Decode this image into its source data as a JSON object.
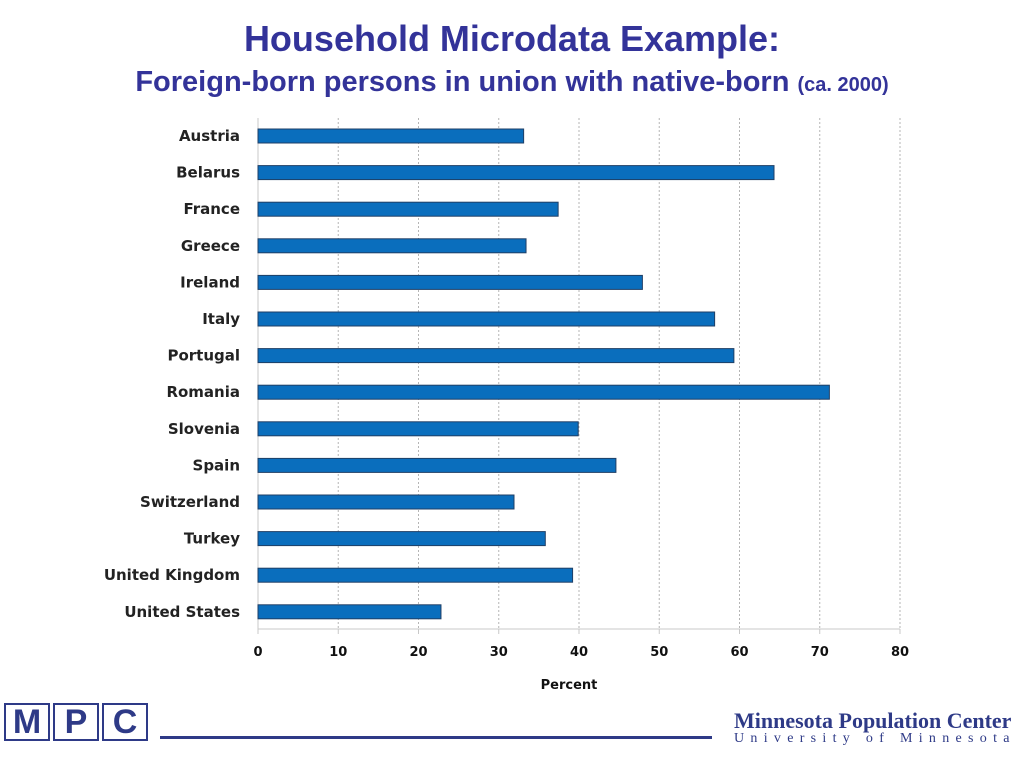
{
  "title": "Household Microdata Example:",
  "subtitle": "Foreign-born persons in union with native-born",
  "subtitle_note": "(ca. 2000)",
  "chart_data": {
    "type": "bar",
    "orientation": "horizontal",
    "categories": [
      "Austria",
      "Belarus",
      "France",
      "Greece",
      "Ireland",
      "Italy",
      "Portugal",
      "Romania",
      "Slovenia",
      "Spain",
      "Switzerland",
      "Turkey",
      "United Kingdom",
      "United States"
    ],
    "values": [
      33.1,
      64.3,
      37.4,
      33.4,
      47.9,
      56.9,
      59.3,
      71.2,
      39.9,
      44.6,
      31.9,
      35.8,
      39.2,
      22.8
    ],
    "xlabel": "Percent",
    "ylabel": "",
    "xlim": [
      0,
      80
    ],
    "xticks": [
      0,
      10,
      20,
      30,
      40,
      50,
      60,
      70,
      80
    ],
    "grid": "vertical dotted",
    "bar_color": "#0a6ebd"
  },
  "footer": {
    "logo_letters": [
      "M",
      "P",
      "C"
    ],
    "org_name": "Minnesota Population Center",
    "org_univ": "University of Minnesota",
    "brand_color": "#2e3a87"
  }
}
